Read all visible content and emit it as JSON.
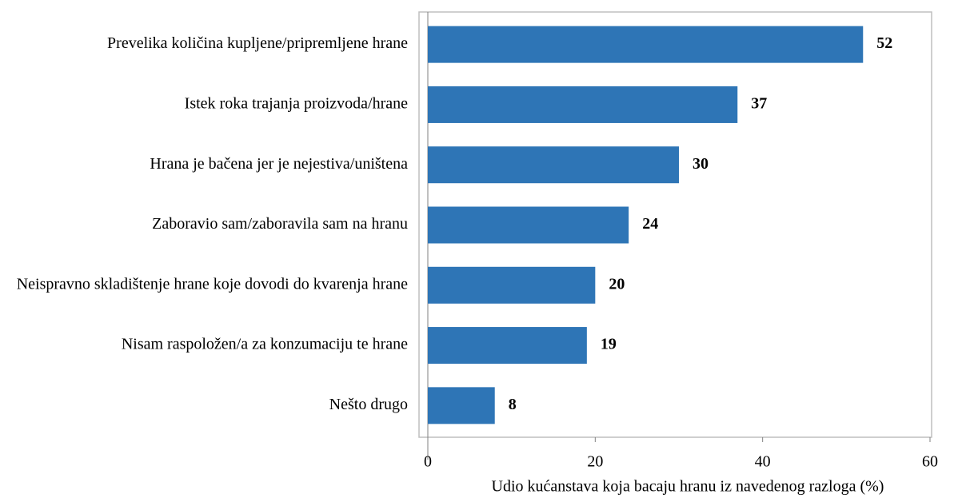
{
  "chart_data": {
    "type": "bar",
    "orientation": "horizontal",
    "categories": [
      "Prevelika količina kupljene/pripremljene hrane",
      "Istek roka trajanja proizvoda/hrane",
      "Hrana je bačena jer je nejestiva/uništena",
      "Zaboravio sam/zaboravila sam na hranu",
      "Neispravno skladištenje hrane koje dovodi do kvarenja hrane",
      "Nisam raspoložen/a za konzumaciju te hrane",
      "Nešto drugo"
    ],
    "values": [
      52,
      37,
      30,
      24,
      20,
      19,
      8
    ],
    "color": "#2e75b6",
    "xlabel": "Udio kućanstava koja bacaju hranu iz navedenog razloga (%)",
    "xlim": [
      0,
      60
    ],
    "xticks": [
      0,
      20,
      40,
      60
    ]
  }
}
